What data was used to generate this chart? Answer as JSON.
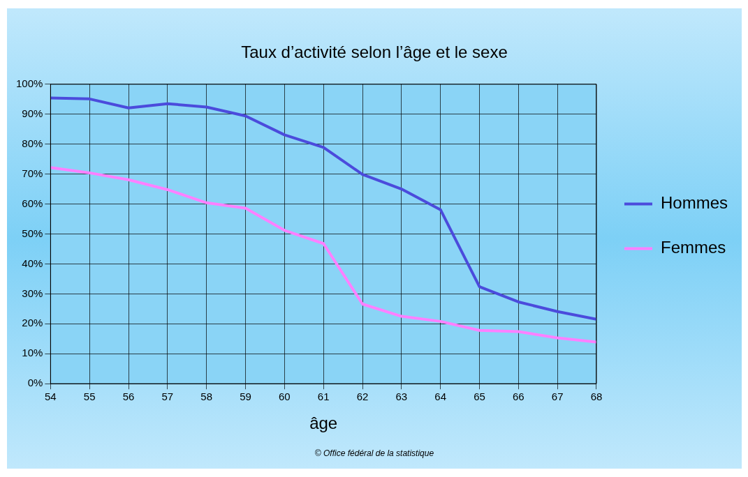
{
  "chart_data": {
    "type": "line",
    "title": "Taux d’activité selon l’âge et le sexe",
    "xlabel": "âge",
    "x": [
      54,
      55,
      56,
      57,
      58,
      59,
      60,
      61,
      62,
      63,
      64,
      65,
      66,
      67,
      68
    ],
    "series": [
      {
        "name": "Hommes",
        "color": "#4b4bdc",
        "values": [
          95.4,
          95.1,
          92.1,
          93.5,
          92.4,
          89.4,
          83.1,
          78.9,
          69.9,
          65.0,
          58.1,
          32.4,
          27.3,
          24.1,
          21.5
        ]
      },
      {
        "name": "Femmes",
        "color": "#ff80ff",
        "values": [
          72.2,
          70.4,
          68.1,
          64.8,
          60.4,
          58.6,
          51.2,
          46.8,
          26.6,
          22.5,
          20.8,
          17.8,
          17.4,
          15.3,
          13.9
        ]
      }
    ],
    "xlim": [
      54,
      68
    ],
    "xticks": [
      54,
      55,
      56,
      57,
      58,
      59,
      60,
      61,
      62,
      63,
      64,
      65,
      66,
      67,
      68
    ],
    "ylim": [
      0,
      100
    ],
    "yticks": [
      {
        "value": 0,
        "label": "0%"
      },
      {
        "value": 10,
        "label": "10%"
      },
      {
        "value": 20,
        "label": "20%"
      },
      {
        "value": 30,
        "label": "30%"
      },
      {
        "value": 40,
        "label": "40%"
      },
      {
        "value": 50,
        "label": "50%"
      },
      {
        "value": 60,
        "label": "60%"
      },
      {
        "value": 70,
        "label": "70%"
      },
      {
        "value": 80,
        "label": "80%"
      },
      {
        "value": 90,
        "label": "90%"
      },
      {
        "value": 100,
        "label": "100%"
      }
    ],
    "grid": true,
    "legend": "right",
    "marker": "none",
    "line_style": "solid",
    "annotations": [
      "© Office fédéral de la statistique"
    ]
  }
}
